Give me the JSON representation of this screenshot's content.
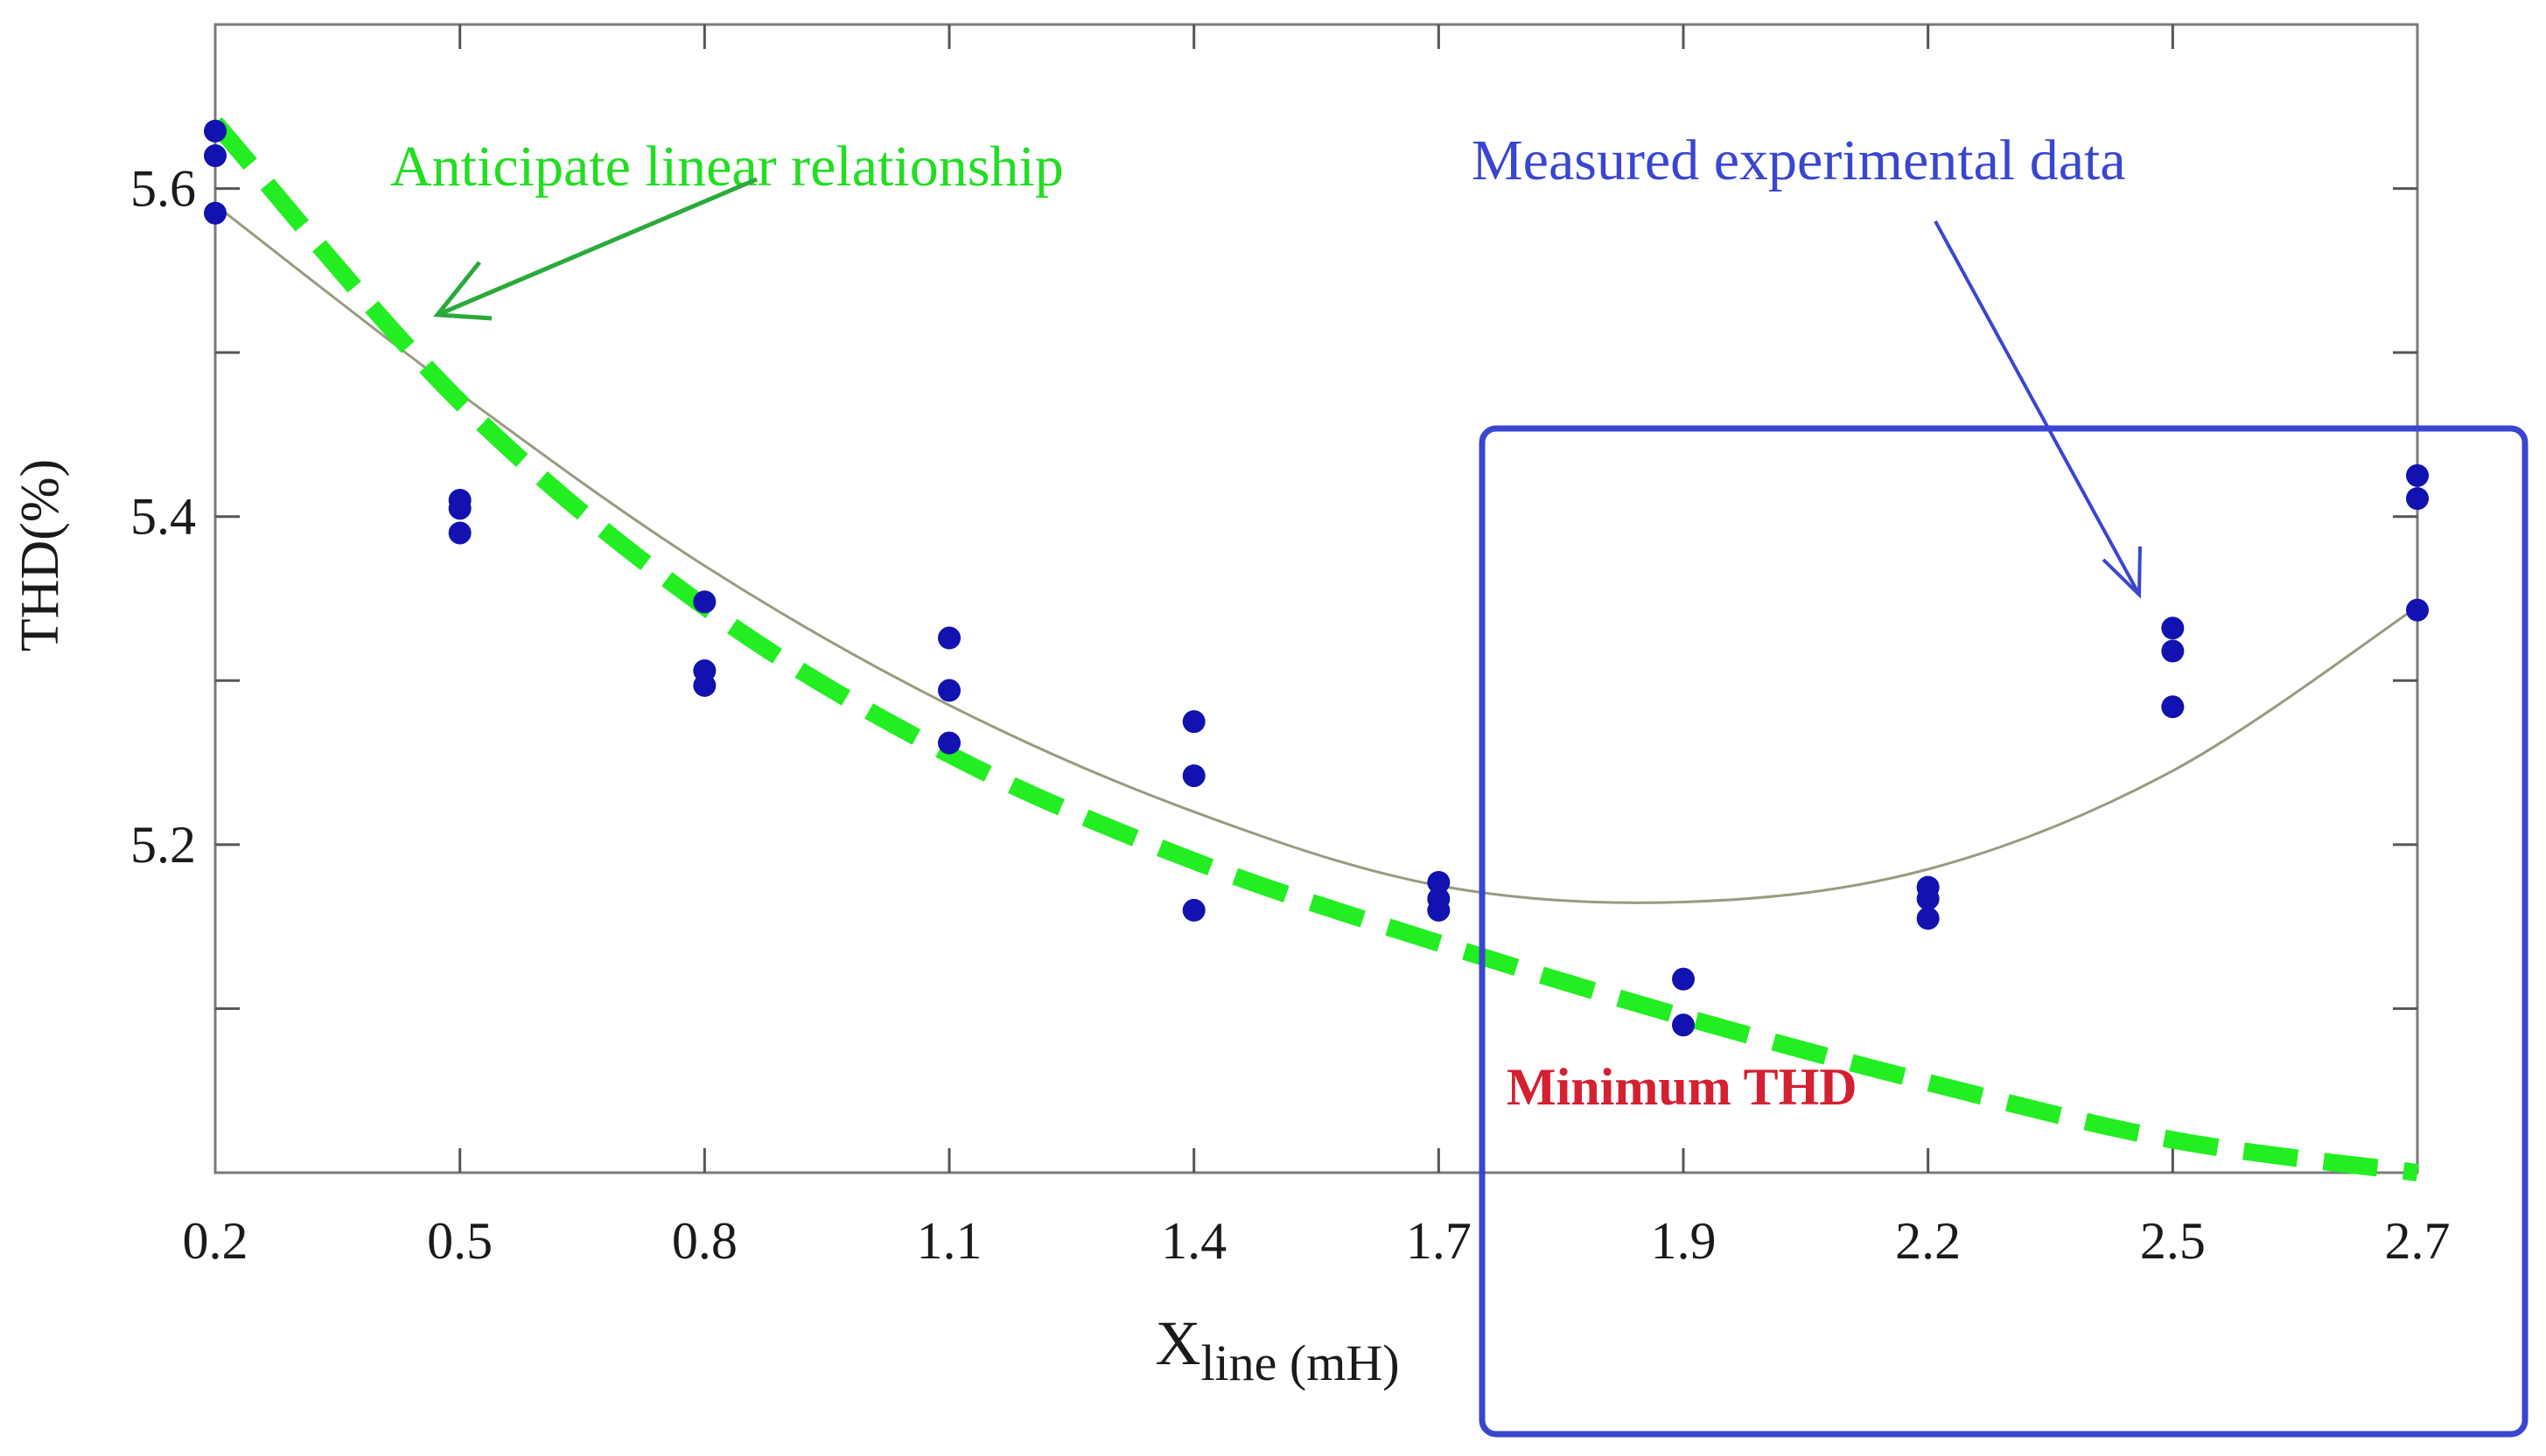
{
  "chart_data": {
    "type": "scatter",
    "title": "",
    "xlabel": "X",
    "xlabel_subscript": "line (mH)",
    "ylabel": "THD(%)",
    "x_ticks": [
      "0.2",
      "0.5",
      "0.8",
      "1.1",
      "1.4",
      "1.7",
      "1.9",
      "2.2",
      "2.5",
      "2.7"
    ],
    "y_ticks": [
      "5.2",
      "5.4",
      "5.6"
    ],
    "ylim": [
      5.0,
      5.7
    ],
    "grid": false,
    "series": [
      {
        "values": [
          {
            "x": "0.2",
            "y": 5.635
          },
          {
            "x": "0.2",
            "y": 5.62
          },
          {
            "x": "0.2",
            "y": 5.585
          },
          {
            "x": "0.5",
            "y": 5.41
          },
          {
            "x": "0.5",
            "y": 5.405
          },
          {
            "x": "0.5",
            "y": 5.39
          },
          {
            "x": "0.8",
            "y": 5.348
          },
          {
            "x": "0.8",
            "y": 5.306
          },
          {
            "x": "0.8",
            "y": 5.297
          },
          {
            "x": "1.1",
            "y": 5.326
          },
          {
            "x": "1.1",
            "y": 5.294
          },
          {
            "x": "1.1",
            "y": 5.262
          },
          {
            "x": "1.4",
            "y": 5.275
          },
          {
            "x": "1.4",
            "y": 5.242
          },
          {
            "x": "1.4",
            "y": 5.16
          },
          {
            "x": "1.7",
            "y": 5.177
          },
          {
            "x": "1.7",
            "y": 5.167
          },
          {
            "x": "1.7",
            "y": 5.16
          },
          {
            "x": "1.9",
            "y": 5.118
          },
          {
            "x": "1.9",
            "y": 5.09
          },
          {
            "x": "2.2",
            "y": 5.174
          },
          {
            "x": "2.2",
            "y": 5.167
          },
          {
            "x": "2.2",
            "y": 5.155
          },
          {
            "x": "2.5",
            "y": 5.332
          },
          {
            "x": "2.5",
            "y": 5.318
          },
          {
            "x": "2.5",
            "y": 5.284
          },
          {
            "x": "2.7",
            "y": 5.425
          },
          {
            "x": "2.7",
            "y": 5.411
          },
          {
            "x": "2.7",
            "y": 5.343
          }
        ],
        "color": "#1212b0"
      }
    ],
    "fit_curve": {
      "color": "#9a9a80",
      "points": [
        {
          "x": "0.2",
          "y": 5.59
        },
        {
          "x": "0.5",
          "y": 5.475
        },
        {
          "x": "0.8",
          "y": 5.37
        },
        {
          "x": "1.1",
          "y": 5.285
        },
        {
          "x": "1.4",
          "y": 5.22
        },
        {
          "x": "1.7",
          "y": 5.175
        },
        {
          "x": "1.9",
          "y": 5.165
        },
        {
          "x": "2.2",
          "y": 5.185
        },
        {
          "x": "2.5",
          "y": 5.245
        },
        {
          "x": "2.7",
          "y": 5.345
        }
      ]
    },
    "linear_trend": {
      "color": "#22ee22",
      "points": [
        {
          "x": "0.2",
          "y": 5.64
        },
        {
          "x": "0.5",
          "y": 5.47
        },
        {
          "x": "0.8",
          "y": 5.345
        },
        {
          "x": "1.1",
          "y": 5.255
        },
        {
          "x": "1.4",
          "y": 5.19
        },
        {
          "x": "1.7",
          "y": 5.14
        },
        {
          "x": "1.9",
          "y": 5.095
        },
        {
          "x": "2.2",
          "y": 5.055
        },
        {
          "x": "2.5",
          "y": 5.02
        },
        {
          "x": "2.7",
          "y": 5.0
        }
      ]
    },
    "annotations": {
      "linear_label": "Anticipate linear relationship",
      "measured_label": "Measured experimental data",
      "minimum_label": "Minimum THD",
      "green_color": "#22dd22",
      "blue_color": "#3a46d0",
      "red_color": "#d42030"
    }
  }
}
